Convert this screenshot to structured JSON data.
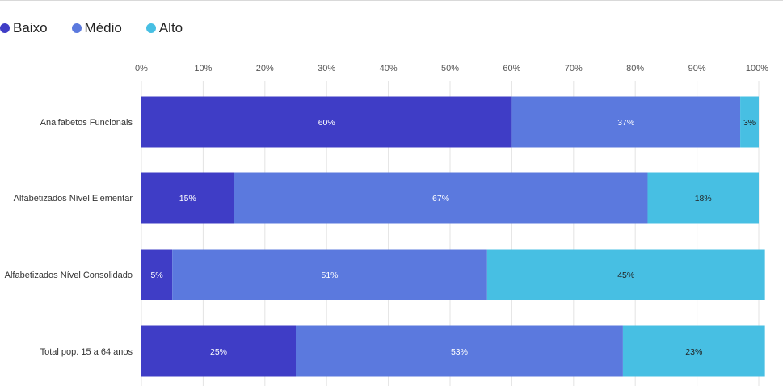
{
  "colors": {
    "Baixo": "#3f3dc6",
    "Médio": "#5b79de",
    "Alto": "#47bfe3"
  },
  "legend": {
    "items": [
      {
        "label": "Baixo",
        "color": "#3f3dc6"
      },
      {
        "label": "Médio",
        "color": "#5b79de"
      },
      {
        "label": "Alto",
        "color": "#47bfe3"
      }
    ]
  },
  "chart_data": {
    "type": "bar",
    "orientation": "horizontal",
    "stacked": true,
    "title": "",
    "xlabel": "",
    "ylabel": "",
    "xlim": [
      0,
      100
    ],
    "x_ticks": [
      "0%",
      "10%",
      "20%",
      "30%",
      "40%",
      "50%",
      "60%",
      "70%",
      "80%",
      "90%",
      "100%"
    ],
    "x_axis_position": "top",
    "grid": true,
    "legend_position": "top-left",
    "categories": [
      "Analfabetos Funcionais",
      "Alfabetizados Nível Elementar",
      "Alfabetizados Nível Consolidado",
      "Total pop. 15 a 64 anos"
    ],
    "series": [
      {
        "name": "Baixo",
        "values": [
          60,
          15,
          5,
          25
        ],
        "labels": [
          "60%",
          "15%",
          "5%",
          "25%"
        ],
        "label_color": "#ffffff"
      },
      {
        "name": "Médio",
        "values": [
          37,
          67,
          51,
          53
        ],
        "labels": [
          "37%",
          "67%",
          "51%",
          "53%"
        ],
        "label_color": "#ffffff"
      },
      {
        "name": "Alto",
        "values": [
          3,
          18,
          45,
          23
        ],
        "labels": [
          "3%",
          "18%",
          "45%",
          "23%"
        ],
        "label_color": "#222222"
      }
    ]
  }
}
